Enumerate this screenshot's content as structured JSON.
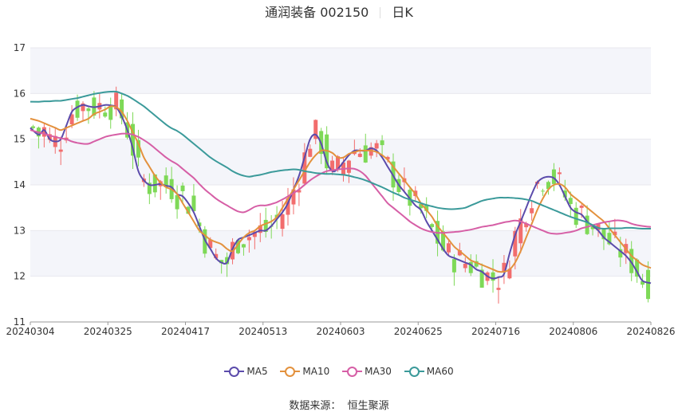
{
  "header": {
    "title": "通润装备 002150",
    "period": "日K"
  },
  "source": {
    "label": "数据来源：",
    "name": "恒生聚源"
  },
  "colors": {
    "up": "#f26d6d",
    "down": "#7ed957",
    "grid": "#e8e8ee",
    "band": "#f4f5fa",
    "axis": "#333333"
  },
  "chart_data": {
    "type": "candlestick",
    "title": "通润装备 002150",
    "ylim": [
      11,
      17
    ],
    "yticks": [
      11,
      12,
      13,
      14,
      15,
      16,
      17
    ],
    "x_tick_labels": [
      "20240304",
      "20240325",
      "20240417",
      "20240513",
      "20240603",
      "20240625",
      "20240716",
      "20240806",
      "20240826"
    ],
    "legend": [
      "MA5",
      "MA10",
      "MA30",
      "MA60"
    ],
    "ma": [
      {
        "name": "MA5",
        "color": "#5b4bab",
        "values": [
          15.25,
          15.1,
          15.2,
          15.0,
          14.95,
          15.0,
          15.3,
          15.6,
          15.7,
          15.75,
          15.72,
          15.7,
          15.72,
          15.75,
          15.74,
          15.7,
          15.5,
          15.2,
          14.8,
          14.3,
          14.1,
          14.0,
          14.0,
          14.02,
          13.98,
          13.95,
          13.8,
          13.75,
          13.6,
          13.4,
          13.1,
          12.8,
          12.6,
          12.4,
          12.3,
          12.3,
          12.6,
          12.8,
          12.85,
          12.9,
          12.95,
          13.0,
          13.0,
          13.1,
          13.25,
          13.4,
          13.6,
          13.9,
          14.2,
          14.6,
          15.0,
          15.1,
          14.9,
          14.5,
          14.3,
          14.35,
          14.5,
          14.65,
          14.75,
          14.75,
          14.75,
          14.8,
          14.75,
          14.6,
          14.4,
          14.2,
          14.0,
          13.85,
          13.7,
          13.55,
          13.45,
          13.2,
          13.0,
          12.8,
          12.6,
          12.45,
          12.4,
          12.35,
          12.3,
          12.25,
          12.15,
          12.1,
          12.0,
          11.95,
          11.98,
          12.05,
          12.5,
          12.9,
          13.2,
          13.5,
          13.8,
          14.05,
          14.15,
          14.18,
          14.15,
          14.0,
          13.75,
          13.5,
          13.4,
          13.35,
          13.2,
          13.1,
          13.0,
          12.85,
          12.75,
          12.65,
          12.55,
          12.45,
          12.3,
          12.1,
          11.9,
          11.85
        ]
      },
      {
        "name": "MA10",
        "color": "#e3913d",
        "values": [
          15.45,
          15.4,
          15.35,
          15.3,
          15.25,
          15.2,
          15.25,
          15.3,
          15.35,
          15.4,
          15.45,
          15.55,
          15.6,
          15.65,
          15.72,
          15.7,
          15.6,
          15.4,
          15.15,
          14.9,
          14.6,
          14.4,
          14.2,
          14.05,
          13.95,
          13.9,
          13.8,
          13.6,
          13.4,
          13.2,
          13.0,
          12.9,
          12.8,
          12.75,
          12.7,
          12.6,
          12.55,
          12.7,
          12.85,
          12.95,
          13.0,
          13.1,
          13.15,
          13.2,
          13.3,
          13.5,
          13.7,
          13.9,
          14.1,
          14.3,
          14.5,
          14.65,
          14.75,
          14.75,
          14.7,
          14.6,
          14.6,
          14.68,
          14.72,
          14.75,
          14.75,
          14.75,
          14.72,
          14.65,
          14.55,
          14.4,
          14.25,
          14.1,
          13.95,
          13.8,
          13.6,
          13.45,
          13.3,
          13.1,
          12.95,
          12.8,
          12.65,
          12.55,
          12.45,
          12.35,
          12.3,
          12.25,
          12.2,
          12.15,
          12.1,
          12.1,
          12.15,
          12.3,
          12.55,
          12.85,
          13.15,
          13.45,
          13.7,
          13.9,
          14.0,
          14.02,
          13.95,
          13.8,
          13.7,
          13.6,
          13.5,
          13.4,
          13.3,
          13.2,
          13.05,
          12.9,
          12.75,
          12.6,
          12.45,
          12.35,
          12.25,
          12.18
        ]
      },
      {
        "name": "MA30",
        "color": "#d65fa6",
        "values": [
          15.2,
          15.15,
          15.12,
          15.08,
          15.05,
          15.02,
          15.0,
          14.95,
          14.92,
          14.9,
          14.9,
          14.95,
          15.0,
          15.05,
          15.08,
          15.1,
          15.12,
          15.12,
          15.1,
          15.05,
          14.98,
          14.9,
          14.8,
          14.7,
          14.6,
          14.52,
          14.45,
          14.35,
          14.25,
          14.15,
          14.02,
          13.9,
          13.8,
          13.7,
          13.62,
          13.55,
          13.48,
          13.42,
          13.4,
          13.45,
          13.52,
          13.55,
          13.55,
          13.58,
          13.62,
          13.68,
          13.75,
          13.82,
          13.9,
          14.0,
          14.1,
          14.18,
          14.25,
          14.3,
          14.32,
          14.34,
          14.35,
          14.36,
          14.35,
          14.3,
          14.2,
          14.05,
          13.9,
          13.75,
          13.6,
          13.5,
          13.4,
          13.3,
          13.2,
          13.12,
          13.05,
          13.0,
          12.97,
          12.95,
          12.95,
          12.96,
          12.97,
          12.98,
          13.0,
          13.02,
          13.05,
          13.08,
          13.1,
          13.12,
          13.15,
          13.18,
          13.2,
          13.22,
          13.2,
          13.15,
          13.1,
          13.05,
          13.0,
          12.95,
          12.93,
          12.93,
          12.95,
          12.97,
          13.0,
          13.05,
          13.08,
          13.12,
          13.15,
          13.18,
          13.2,
          13.22,
          13.22,
          13.2,
          13.15,
          13.12,
          13.1,
          13.08
        ]
      },
      {
        "name": "MA60",
        "color": "#3b9a9a",
        "values": [
          15.82,
          15.82,
          15.83,
          15.83,
          15.84,
          15.84,
          15.86,
          15.88,
          15.9,
          15.93,
          15.96,
          15.99,
          16.01,
          16.03,
          16.04,
          16.04,
          16.0,
          15.95,
          15.88,
          15.8,
          15.72,
          15.62,
          15.52,
          15.42,
          15.32,
          15.24,
          15.18,
          15.1,
          15.0,
          14.9,
          14.8,
          14.7,
          14.6,
          14.52,
          14.45,
          14.38,
          14.3,
          14.24,
          14.2,
          14.18,
          14.2,
          14.22,
          14.25,
          14.28,
          14.3,
          14.32,
          14.33,
          14.34,
          14.33,
          14.3,
          14.28,
          14.26,
          14.25,
          14.24,
          14.24,
          14.23,
          14.22,
          14.2,
          14.17,
          14.14,
          14.1,
          14.05,
          14.0,
          13.95,
          13.89,
          13.83,
          13.78,
          13.72,
          13.68,
          13.64,
          13.6,
          13.56,
          13.53,
          13.5,
          13.48,
          13.47,
          13.47,
          13.48,
          13.5,
          13.55,
          13.6,
          13.65,
          13.68,
          13.7,
          13.72,
          13.72,
          13.72,
          13.71,
          13.7,
          13.68,
          13.65,
          13.6,
          13.55,
          13.5,
          13.45,
          13.4,
          13.35,
          13.3,
          13.26,
          13.22,
          13.18,
          13.12,
          13.06,
          13.04,
          13.05,
          13.05,
          13.05,
          13.06,
          13.06,
          13.05,
          13.04,
          13.04
        ]
      }
    ]
  }
}
